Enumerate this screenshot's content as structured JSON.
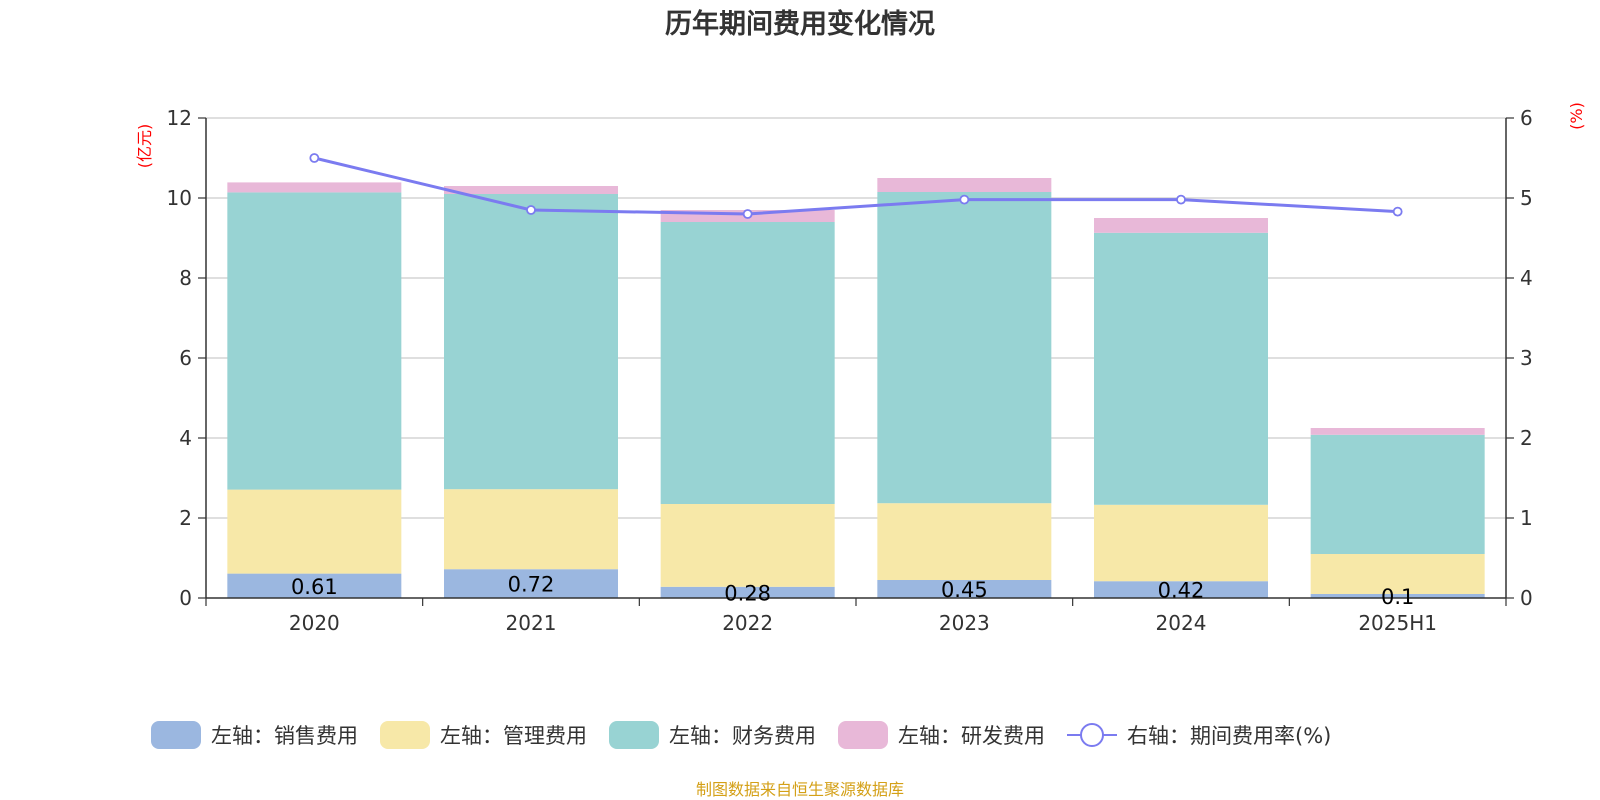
{
  "chart_data": {
    "type": "bar",
    "title": "历年期间费用变化情况",
    "ylabel_left": "(亿元)",
    "ylabel_right": "(%)",
    "categories": [
      "2020",
      "2021",
      "2022",
      "2023",
      "2024",
      "2025H1"
    ],
    "y_left": {
      "min": 0,
      "max": 12,
      "ticks": [
        "0",
        "2",
        "4",
        "6",
        "8",
        "10",
        "12"
      ]
    },
    "y_right": {
      "min": 0,
      "max": 6,
      "ticks": [
        "0",
        "1",
        "2",
        "3",
        "4",
        "5",
        "6"
      ]
    },
    "grid": true,
    "legend_position": "bottom",
    "series": [
      {
        "name": "左轴：销售费用",
        "axis": "left",
        "kind": "bar",
        "color": "#9bb7e0",
        "values": [
          0.61,
          0.72,
          0.28,
          0.45,
          0.42,
          0.1
        ],
        "labels": [
          "0.61",
          "0.72",
          "0.28",
          "0.45",
          "0.42",
          "0.1"
        ]
      },
      {
        "name": "左轴：管理费用",
        "axis": "left",
        "kind": "bar",
        "color": "#f7e8a8",
        "values": [
          2.1,
          2.0,
          2.07,
          1.92,
          1.91,
          1.0
        ]
      },
      {
        "name": "左轴：财务费用",
        "axis": "left",
        "kind": "bar",
        "color": "#98d3d3",
        "values": [
          7.43,
          7.38,
          7.05,
          7.78,
          6.8,
          2.98
        ]
      },
      {
        "name": "左轴：研发费用",
        "axis": "left",
        "kind": "bar",
        "color": "#e8b8d8",
        "values": [
          0.25,
          0.2,
          0.3,
          0.35,
          0.37,
          0.17
        ]
      },
      {
        "name": "右轴：期间费用率(%)",
        "axis": "right",
        "kind": "line",
        "color": "#7b7bf0",
        "values": [
          5.5,
          4.85,
          4.8,
          4.98,
          4.98,
          4.83
        ]
      }
    ]
  },
  "source": "制图数据来自恒生聚源数据库"
}
